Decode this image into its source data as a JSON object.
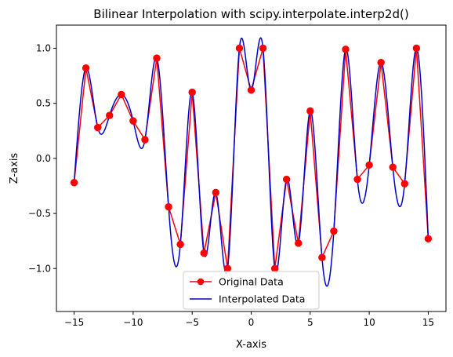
{
  "chart_data": {
    "type": "line",
    "title": "Bilinear Interpolation with scipy.interpolate.interp2d()",
    "xlabel": "X-axis",
    "ylabel": "Z-axis",
    "xlim": [
      -16.5,
      16.5
    ],
    "ylim": [
      -1.39,
      1.21
    ],
    "xticks": [
      -15,
      -10,
      -5,
      0,
      5,
      10,
      15
    ],
    "xtick_labels": [
      "−15",
      "−10",
      "−5",
      "0",
      "5",
      "10",
      "15"
    ],
    "yticks": [
      -1.0,
      -0.5,
      0.0,
      0.5,
      1.0
    ],
    "ytick_labels": [
      "−1.0",
      "−0.5",
      "0.0",
      "0.5",
      "1.0"
    ],
    "grid": false,
    "legend_position": "lower-center",
    "series": [
      {
        "name": "Original Data",
        "color": "#ff0000",
        "marker": "circle",
        "x": [
          -15,
          -14,
          -13,
          -12,
          -11,
          -10,
          -9,
          -8,
          -7,
          -6,
          -5,
          -4,
          -3,
          -2,
          -1,
          0,
          1,
          2,
          3,
          4,
          5,
          6,
          7,
          8,
          9,
          10,
          11,
          12,
          13,
          14,
          15
        ],
        "y": [
          -0.22,
          0.82,
          0.28,
          0.39,
          0.58,
          0.34,
          0.17,
          0.91,
          -0.44,
          -0.78,
          0.6,
          -0.86,
          -0.31,
          -1.0,
          1.0,
          0.62,
          1.0,
          -1.0,
          -0.19,
          -0.77,
          0.43,
          -0.9,
          -0.66,
          0.99,
          -0.19,
          -0.06,
          0.87,
          -0.08,
          -0.23,
          1.0,
          -0.73
        ]
      },
      {
        "name": "Interpolated Data",
        "color": "#0000cd",
        "style": "smooth-cubic"
      }
    ]
  }
}
